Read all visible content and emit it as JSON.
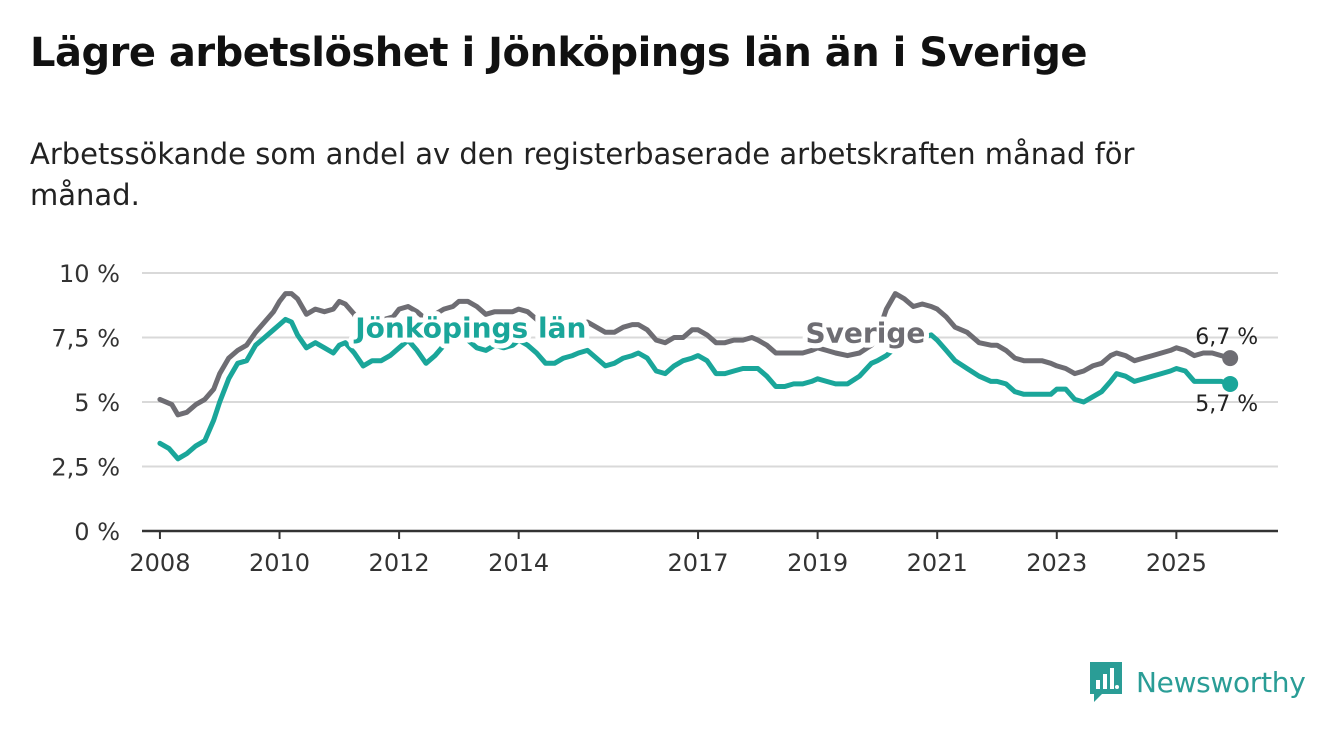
{
  "title": "Lägre arbetslöshet i Jönköpings län än i Sverige",
  "subtitle": "Arbetssökande som andel av den registerbaserade arbetskraften månad för månad.",
  "brand": {
    "name": "Newsworthy",
    "icon": "newsworthy-logo-icon"
  },
  "colors": {
    "sverige": "#6e6d73",
    "jonkoping": "#1aa69a",
    "grid": "#d9d9d9",
    "axis": "#333333"
  },
  "chart_data": {
    "type": "line",
    "title": "Lägre arbetslöshet i Jönköpings län än i Sverige",
    "xlabel": "",
    "ylabel": "",
    "xlim": [
      2007.7,
      2026.7
    ],
    "ylim": [
      0,
      10
    ],
    "grid": true,
    "y_ticks": [
      {
        "value": 0,
        "label": "0 %"
      },
      {
        "value": 2.5,
        "label": "2,5 %"
      },
      {
        "value": 5,
        "label": "5 %"
      },
      {
        "value": 7.5,
        "label": "7,5 %"
      },
      {
        "value": 10,
        "label": "10 %"
      }
    ],
    "x_ticks": [
      {
        "value": 2008,
        "label": "2008"
      },
      {
        "value": 2010,
        "label": "2010"
      },
      {
        "value": 2012,
        "label": "2012"
      },
      {
        "value": 2014,
        "label": "2014"
      },
      {
        "value": 2017,
        "label": "2017"
      },
      {
        "value": 2019,
        "label": "2019"
      },
      {
        "value": 2021,
        "label": "2021"
      },
      {
        "value": 2023,
        "label": "2023"
      },
      {
        "value": 2025,
        "label": "2025"
      }
    ],
    "series": [
      {
        "name": "Sverige",
        "label": "Sverige",
        "label_at": [
          2019.8,
          7.3
        ],
        "end_label": "6,7 %",
        "points": [
          [
            2008.0,
            5.1
          ],
          [
            2008.2,
            4.9
          ],
          [
            2008.3,
            4.5
          ],
          [
            2008.45,
            4.6
          ],
          [
            2008.6,
            4.9
          ],
          [
            2008.75,
            5.1
          ],
          [
            2008.9,
            5.5
          ],
          [
            2009.0,
            6.1
          ],
          [
            2009.15,
            6.7
          ],
          [
            2009.3,
            7.0
          ],
          [
            2009.45,
            7.2
          ],
          [
            2009.6,
            7.7
          ],
          [
            2009.75,
            8.1
          ],
          [
            2009.9,
            8.5
          ],
          [
            2010.0,
            8.9
          ],
          [
            2010.1,
            9.2
          ],
          [
            2010.2,
            9.2
          ],
          [
            2010.3,
            9.0
          ],
          [
            2010.45,
            8.4
          ],
          [
            2010.6,
            8.6
          ],
          [
            2010.75,
            8.5
          ],
          [
            2010.9,
            8.6
          ],
          [
            2011.0,
            8.9
          ],
          [
            2011.1,
            8.8
          ],
          [
            2011.25,
            8.4
          ],
          [
            2011.35,
            7.9
          ],
          [
            2011.5,
            8.0
          ],
          [
            2011.6,
            8.2
          ],
          [
            2011.75,
            8.2
          ],
          [
            2011.9,
            8.3
          ],
          [
            2012.0,
            8.6
          ],
          [
            2012.15,
            8.7
          ],
          [
            2012.3,
            8.5
          ],
          [
            2012.45,
            8.2
          ],
          [
            2012.6,
            8.4
          ],
          [
            2012.75,
            8.6
          ],
          [
            2012.9,
            8.7
          ],
          [
            2013.0,
            8.9
          ],
          [
            2013.15,
            8.9
          ],
          [
            2013.3,
            8.7
          ],
          [
            2013.45,
            8.4
          ],
          [
            2013.6,
            8.5
          ],
          [
            2013.75,
            8.5
          ],
          [
            2013.9,
            8.5
          ],
          [
            2014.0,
            8.6
          ],
          [
            2014.15,
            8.5
          ],
          [
            2014.3,
            8.2
          ],
          [
            2014.45,
            7.8
          ],
          [
            2014.6,
            7.7
          ],
          [
            2014.75,
            7.8
          ],
          [
            2014.9,
            7.9
          ],
          [
            2015.0,
            8.0
          ],
          [
            2015.15,
            8.1
          ],
          [
            2015.3,
            7.9
          ],
          [
            2015.45,
            7.7
          ],
          [
            2015.6,
            7.7
          ],
          [
            2015.75,
            7.9
          ],
          [
            2015.9,
            8.0
          ],
          [
            2016.0,
            8.0
          ],
          [
            2016.15,
            7.8
          ],
          [
            2016.3,
            7.4
          ],
          [
            2016.45,
            7.3
          ],
          [
            2016.6,
            7.5
          ],
          [
            2016.75,
            7.5
          ],
          [
            2016.9,
            7.8
          ],
          [
            2017.0,
            7.8
          ],
          [
            2017.15,
            7.6
          ],
          [
            2017.3,
            7.3
          ],
          [
            2017.45,
            7.3
          ],
          [
            2017.6,
            7.4
          ],
          [
            2017.75,
            7.4
          ],
          [
            2017.9,
            7.5
          ],
          [
            2018.0,
            7.4
          ],
          [
            2018.15,
            7.2
          ],
          [
            2018.3,
            6.9
          ],
          [
            2018.45,
            6.9
          ],
          [
            2018.6,
            6.9
          ],
          [
            2018.75,
            6.9
          ],
          [
            2018.9,
            7.0
          ],
          [
            2019.0,
            7.1
          ],
          [
            2019.15,
            7.0
          ],
          [
            2019.3,
            6.9
          ],
          [
            2019.5,
            6.8
          ],
          [
            2019.7,
            6.9
          ],
          [
            2019.9,
            7.2
          ],
          [
            2020.0,
            7.6
          ],
          [
            2020.15,
            8.6
          ],
          [
            2020.3,
            9.2
          ],
          [
            2020.45,
            9.0
          ],
          [
            2020.6,
            8.7
          ],
          [
            2020.75,
            8.8
          ],
          [
            2020.9,
            8.7
          ],
          [
            2021.0,
            8.6
          ],
          [
            2021.15,
            8.3
          ],
          [
            2021.3,
            7.9
          ],
          [
            2021.5,
            7.7
          ],
          [
            2021.7,
            7.3
          ],
          [
            2021.9,
            7.2
          ],
          [
            2022.0,
            7.2
          ],
          [
            2022.15,
            7.0
          ],
          [
            2022.3,
            6.7
          ],
          [
            2022.45,
            6.6
          ],
          [
            2022.6,
            6.6
          ],
          [
            2022.75,
            6.6
          ],
          [
            2022.9,
            6.5
          ],
          [
            2023.0,
            6.4
          ],
          [
            2023.15,
            6.3
          ],
          [
            2023.3,
            6.1
          ],
          [
            2023.45,
            6.2
          ],
          [
            2023.6,
            6.4
          ],
          [
            2023.75,
            6.5
          ],
          [
            2023.9,
            6.8
          ],
          [
            2024.0,
            6.9
          ],
          [
            2024.15,
            6.8
          ],
          [
            2024.3,
            6.6
          ],
          [
            2024.45,
            6.7
          ],
          [
            2024.6,
            6.8
          ],
          [
            2024.75,
            6.9
          ],
          [
            2024.9,
            7.0
          ],
          [
            2025.0,
            7.1
          ],
          [
            2025.15,
            7.0
          ],
          [
            2025.3,
            6.8
          ],
          [
            2025.45,
            6.9
          ],
          [
            2025.6,
            6.9
          ],
          [
            2025.75,
            6.8
          ],
          [
            2025.9,
            6.7
          ]
        ]
      },
      {
        "name": "Jönköpings län",
        "label": "Jönköpings län",
        "label_at": [
          2013.2,
          7.5
        ],
        "end_label": "5,7 %",
        "points": [
          [
            2008.0,
            3.4
          ],
          [
            2008.15,
            3.2
          ],
          [
            2008.3,
            2.8
          ],
          [
            2008.45,
            3.0
          ],
          [
            2008.6,
            3.3
          ],
          [
            2008.75,
            3.5
          ],
          [
            2008.9,
            4.3
          ],
          [
            2009.0,
            5.0
          ],
          [
            2009.15,
            5.9
          ],
          [
            2009.3,
            6.5
          ],
          [
            2009.45,
            6.6
          ],
          [
            2009.6,
            7.2
          ],
          [
            2009.75,
            7.5
          ],
          [
            2009.9,
            7.8
          ],
          [
            2010.0,
            8.0
          ],
          [
            2010.1,
            8.2
          ],
          [
            2010.2,
            8.1
          ],
          [
            2010.3,
            7.6
          ],
          [
            2010.45,
            7.1
          ],
          [
            2010.6,
            7.3
          ],
          [
            2010.75,
            7.1
          ],
          [
            2010.9,
            6.9
          ],
          [
            2011.0,
            7.2
          ],
          [
            2011.1,
            7.3
          ],
          [
            2011.25,
            6.9
          ],
          [
            2011.4,
            6.4
          ],
          [
            2011.55,
            6.6
          ],
          [
            2011.7,
            6.6
          ],
          [
            2011.85,
            6.8
          ],
          [
            2012.0,
            7.1
          ],
          [
            2012.15,
            7.4
          ],
          [
            2012.3,
            7.0
          ],
          [
            2012.45,
            6.5
          ],
          [
            2012.6,
            6.8
          ],
          [
            2012.75,
            7.2
          ],
          [
            2012.9,
            7.4
          ],
          [
            2013.0,
            7.5
          ],
          [
            2013.15,
            7.4
          ],
          [
            2013.3,
            7.1
          ],
          [
            2013.45,
            7.0
          ],
          [
            2013.6,
            7.2
          ],
          [
            2013.75,
            7.1
          ],
          [
            2013.9,
            7.2
          ],
          [
            2014.0,
            7.4
          ],
          [
            2014.15,
            7.2
          ],
          [
            2014.3,
            6.9
          ],
          [
            2014.45,
            6.5
          ],
          [
            2014.6,
            6.5
          ],
          [
            2014.75,
            6.7
          ],
          [
            2014.9,
            6.8
          ],
          [
            2015.0,
            6.9
          ],
          [
            2015.15,
            7.0
          ],
          [
            2015.3,
            6.7
          ],
          [
            2015.45,
            6.4
          ],
          [
            2015.6,
            6.5
          ],
          [
            2015.75,
            6.7
          ],
          [
            2015.9,
            6.8
          ],
          [
            2016.0,
            6.9
          ],
          [
            2016.15,
            6.7
          ],
          [
            2016.3,
            6.2
          ],
          [
            2016.45,
            6.1
          ],
          [
            2016.6,
            6.4
          ],
          [
            2016.75,
            6.6
          ],
          [
            2016.9,
            6.7
          ],
          [
            2017.0,
            6.8
          ],
          [
            2017.15,
            6.6
          ],
          [
            2017.3,
            6.1
          ],
          [
            2017.45,
            6.1
          ],
          [
            2017.6,
            6.2
          ],
          [
            2017.75,
            6.3
          ],
          [
            2017.9,
            6.3
          ],
          [
            2018.0,
            6.3
          ],
          [
            2018.15,
            6.0
          ],
          [
            2018.3,
            5.6
          ],
          [
            2018.45,
            5.6
          ],
          [
            2018.6,
            5.7
          ],
          [
            2018.75,
            5.7
          ],
          [
            2018.9,
            5.8
          ],
          [
            2019.0,
            5.9
          ],
          [
            2019.15,
            5.8
          ],
          [
            2019.3,
            5.7
          ],
          [
            2019.5,
            5.7
          ],
          [
            2019.7,
            6.0
          ],
          [
            2019.9,
            6.5
          ],
          [
            2020.0,
            6.6
          ],
          [
            2020.15,
            6.8
          ],
          [
            2020.3,
            7.1
          ],
          [
            2020.45,
            7.3
          ],
          [
            2020.6,
            7.4
          ],
          [
            2020.75,
            7.5
          ],
          [
            2020.9,
            7.6
          ],
          [
            2021.0,
            7.4
          ],
          [
            2021.15,
            7.0
          ],
          [
            2021.3,
            6.6
          ],
          [
            2021.5,
            6.3
          ],
          [
            2021.7,
            6.0
          ],
          [
            2021.9,
            5.8
          ],
          [
            2022.0,
            5.8
          ],
          [
            2022.15,
            5.7
          ],
          [
            2022.3,
            5.4
          ],
          [
            2022.45,
            5.3
          ],
          [
            2022.6,
            5.3
          ],
          [
            2022.75,
            5.3
          ],
          [
            2022.9,
            5.3
          ],
          [
            2023.0,
            5.5
          ],
          [
            2023.15,
            5.5
          ],
          [
            2023.3,
            5.1
          ],
          [
            2023.45,
            5.0
          ],
          [
            2023.6,
            5.2
          ],
          [
            2023.75,
            5.4
          ],
          [
            2023.9,
            5.8
          ],
          [
            2024.0,
            6.1
          ],
          [
            2024.15,
            6.0
          ],
          [
            2024.3,
            5.8
          ],
          [
            2024.45,
            5.9
          ],
          [
            2024.6,
            6.0
          ],
          [
            2024.75,
            6.1
          ],
          [
            2024.9,
            6.2
          ],
          [
            2025.0,
            6.3
          ],
          [
            2025.15,
            6.2
          ],
          [
            2025.3,
            5.8
          ],
          [
            2025.45,
            5.8
          ],
          [
            2025.6,
            5.8
          ],
          [
            2025.75,
            5.8
          ],
          [
            2025.9,
            5.7
          ]
        ]
      }
    ]
  }
}
